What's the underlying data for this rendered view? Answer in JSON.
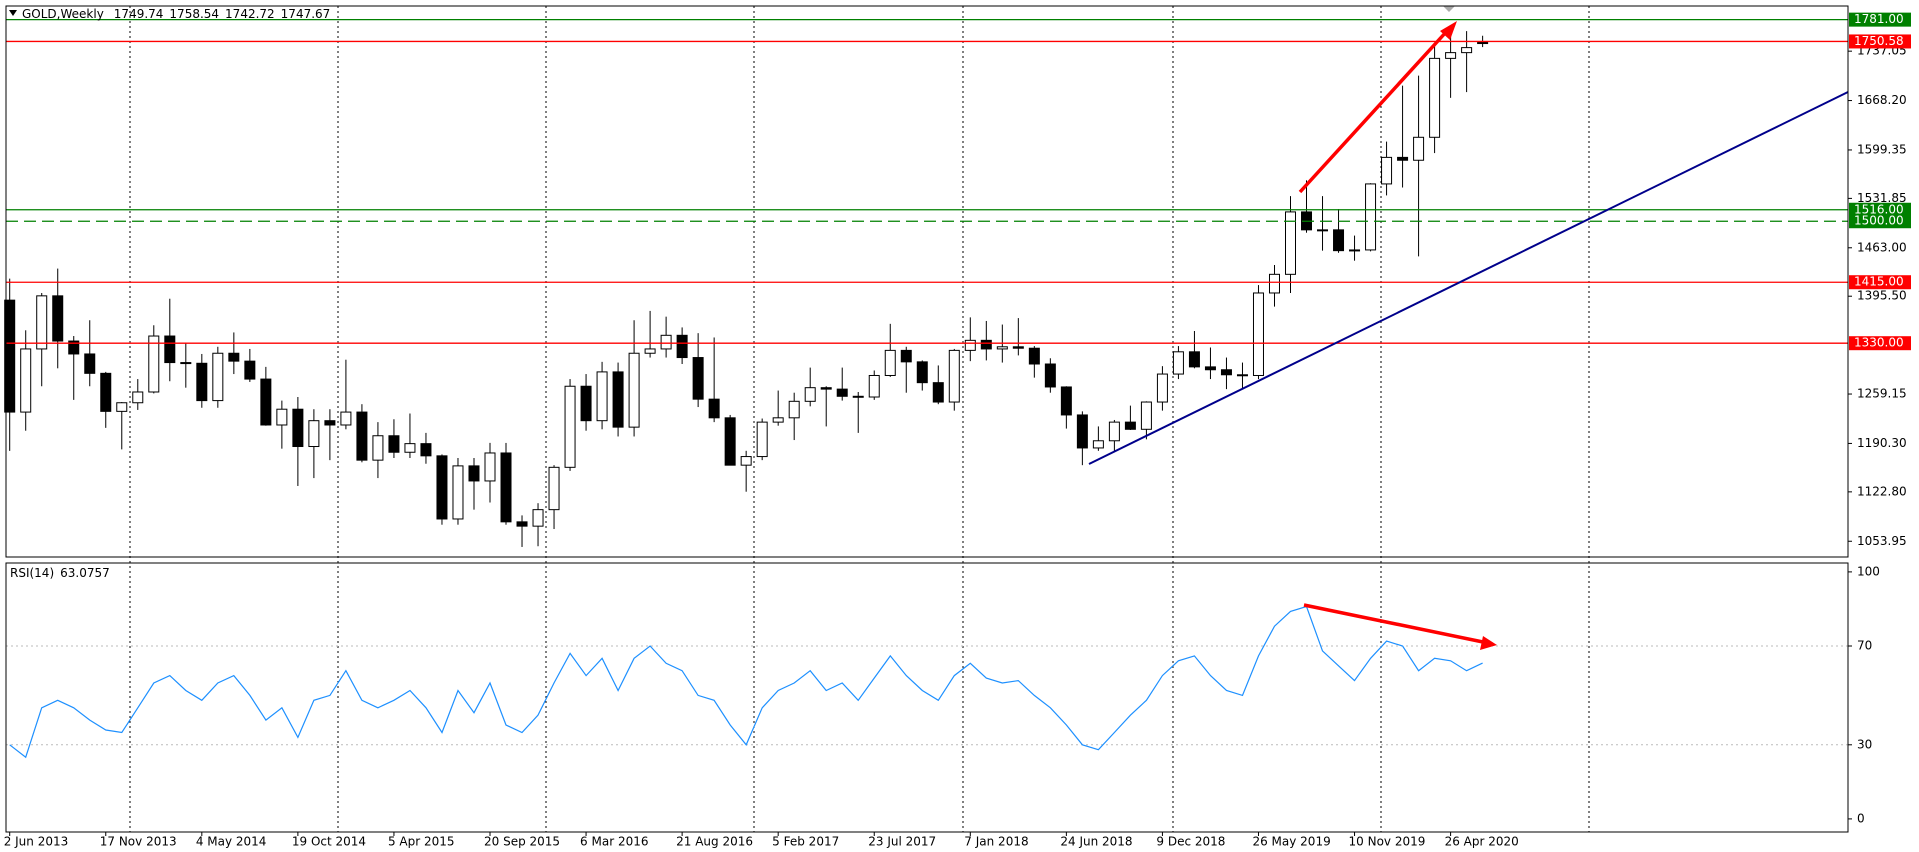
{
  "chart_data": {
    "type": "candlestick",
    "title": "GOLD,Weekly",
    "header_values": [
      1749.74,
      1758.54,
      1742.72,
      1747.67
    ],
    "categories": [
      "2 Jun 2013",
      null,
      null,
      null,
      null,
      null,
      "17 Nov 2013",
      null,
      null,
      null,
      null,
      null,
      "4 May 2014",
      null,
      null,
      null,
      null,
      null,
      "19 Oct 2014",
      null,
      null,
      null,
      null,
      null,
      "5 Apr 2015",
      null,
      null,
      null,
      null,
      null,
      "20 Sep 2015",
      null,
      null,
      null,
      null,
      null,
      "6 Mar 2016",
      null,
      null,
      null,
      null,
      null,
      "21 Aug 2016",
      null,
      null,
      null,
      null,
      null,
      "5 Feb 2017",
      null,
      null,
      null,
      null,
      null,
      "23 Jul 2017",
      null,
      null,
      null,
      null,
      null,
      "7 Jan 2018",
      null,
      null,
      null,
      null,
      null,
      "24 Jun 2018",
      null,
      null,
      null,
      null,
      null,
      "9 Dec 2018",
      null,
      null,
      null,
      null,
      null,
      "26 May 2019",
      null,
      null,
      null,
      null,
      null,
      "10 Nov 2019",
      null,
      null,
      null,
      null,
      null,
      "26 Apr 2020",
      null,
      null
    ],
    "open": [
      1390,
      1234,
      1322,
      1396,
      1333,
      1315,
      1288,
      1235,
      1247,
      1262,
      1340,
      1303,
      1302,
      1250,
      1316,
      1305,
      1280,
      1216,
      1238,
      1186,
      1222,
      1216,
      1234,
      1167,
      1201,
      1178,
      1190,
      1173,
      1085,
      1159,
      1138,
      1177,
      1081,
      1075,
      1098,
      1157,
      1270,
      1222,
      1290,
      1213,
      1316,
      1322,
      1341,
      1310,
      1252,
      1226,
      1160,
      1172,
      1220,
      1226,
      1249,
      1268,
      1266,
      1256,
      1255,
      1285,
      1320,
      1304,
      1275,
      1248,
      1320,
      1334,
      1322,
      1325,
      1323,
      1301,
      1269,
      1230,
      1184,
      1194,
      1220,
      1210,
      1248,
      1287,
      1318,
      1297,
      1293,
      1286,
      1285,
      1400,
      1426,
      1513,
      1488,
      1488,
      1459,
      1460,
      1552,
      1589,
      1585,
      1617,
      1727,
      1735,
      1749.74
    ],
    "high": [
      1420,
      1348,
      1400,
      1434,
      1340,
      1362,
      1290,
      1248,
      1280,
      1355,
      1392,
      1331,
      1315,
      1325,
      1345,
      1322,
      1297,
      1250,
      1255,
      1238,
      1238,
      1307,
      1245,
      1220,
      1224,
      1232,
      1205,
      1175,
      1170,
      1170,
      1191,
      1191,
      1090,
      1107,
      1160,
      1280,
      1287,
      1304,
      1303,
      1362,
      1375,
      1367,
      1352,
      1344,
      1338,
      1230,
      1180,
      1225,
      1264,
      1261,
      1296,
      1270,
      1296,
      1262,
      1292,
      1357,
      1325,
      1306,
      1299,
      1322,
      1366,
      1361,
      1356,
      1365,
      1326,
      1309,
      1270,
      1235,
      1214,
      1223,
      1243,
      1249,
      1298,
      1326,
      1347,
      1324,
      1310,
      1303,
      1411,
      1439,
      1535,
      1557,
      1535,
      1517,
      1480,
      1553,
      1611,
      1689,
      1703,
      1747,
      1765,
      1765,
      1758.54
    ],
    "low": [
      1180,
      1208,
      1270,
      1295,
      1251,
      1270,
      1212,
      1182,
      1237,
      1260,
      1277,
      1268,
      1240,
      1240,
      1287,
      1276,
      1215,
      1183,
      1131,
      1142,
      1167,
      1210,
      1164,
      1142,
      1170,
      1170,
      1162,
      1077,
      1077,
      1098,
      1108,
      1077,
      1046,
      1047,
      1071,
      1152,
      1208,
      1210,
      1200,
      1200,
      1310,
      1310,
      1301,
      1241,
      1220,
      1160,
      1123,
      1167,
      1215,
      1195,
      1242,
      1214,
      1250,
      1205,
      1251,
      1283,
      1261,
      1264,
      1245,
      1236,
      1305,
      1306,
      1303,
      1313,
      1282,
      1261,
      1211,
      1160,
      1180,
      1180,
      1209,
      1196,
      1236,
      1280,
      1295,
      1280,
      1266,
      1266,
      1280,
      1381,
      1400,
      1484,
      1459,
      1456,
      1445,
      1458,
      1536,
      1547,
      1451,
      1595,
      1672,
      1680,
      1742.72
    ],
    "close": [
      1234,
      1322,
      1396,
      1333,
      1315,
      1288,
      1235,
      1247,
      1262,
      1340,
      1303,
      1302,
      1250,
      1316,
      1305,
      1280,
      1216,
      1238,
      1186,
      1222,
      1216,
      1234,
      1167,
      1201,
      1178,
      1190,
      1173,
      1085,
      1159,
      1138,
      1177,
      1081,
      1075,
      1098,
      1157,
      1270,
      1222,
      1290,
      1213,
      1316,
      1322,
      1341,
      1310,
      1252,
      1226,
      1160,
      1172,
      1220,
      1226,
      1249,
      1268,
      1266,
      1256,
      1255,
      1285,
      1320,
      1304,
      1275,
      1248,
      1320,
      1334,
      1322,
      1325,
      1323,
      1301,
      1269,
      1230,
      1184,
      1194,
      1220,
      1210,
      1248,
      1287,
      1318,
      1297,
      1293,
      1286,
      1285,
      1400,
      1426,
      1513,
      1488,
      1488,
      1459,
      1460,
      1552,
      1589,
      1585,
      1617,
      1727,
      1735,
      1742,
      1747.67
    ],
    "up_color": "#ffffff",
    "down_color": "#000000",
    "ylim": [
      1032,
      1800
    ],
    "yticks": [
      1053.95,
      {
        "value": 1122.8,
        "label": "1122.80"
      },
      {
        "value": 1190.3,
        "label": "1190.30"
      },
      1259.15,
      {
        "value": 1395.5,
        "label": "1395.50"
      },
      {
        "value": 1463,
        "label": "1463.00"
      },
      1531.85,
      1599.35,
      {
        "value": 1668.2,
        "label": "1668.20"
      },
      1737.05
    ],
    "levels": [
      {
        "value": 1781,
        "label": "1781.00",
        "color": "#008000",
        "style": "solid"
      },
      {
        "value": 1750.58,
        "label": "1750.58",
        "color": "#ff0000",
        "style": "solid"
      },
      {
        "value": 1516,
        "label": "1516.00",
        "color": "#008000",
        "style": "solid"
      },
      {
        "value": 1500,
        "label": "1500.00",
        "color": "#008000",
        "style": "dashed"
      },
      {
        "value": 1415,
        "label": "1415.00",
        "color": "#ff0000",
        "style": "solid"
      },
      {
        "value": 1330,
        "label": "1330.00",
        "color": "#ff0000",
        "style": "solid"
      }
    ],
    "indicator": {
      "type": "line",
      "title": "RSI(14)",
      "current": 63.0757,
      "color": "#1e90ff",
      "values": [
        30,
        25,
        45,
        48,
        45,
        40,
        36,
        35,
        45,
        55,
        58,
        52,
        48,
        55,
        58,
        50,
        40,
        45,
        33,
        48,
        50,
        60,
        48,
        45,
        48,
        52,
        45,
        35,
        52,
        43,
        55,
        38,
        35,
        42,
        55,
        67,
        58,
        65,
        52,
        65,
        70,
        63,
        60,
        50,
        48,
        38,
        30,
        45,
        52,
        55,
        60,
        52,
        55,
        48,
        57,
        66,
        58,
        52,
        48,
        58,
        63,
        57,
        55,
        56,
        50,
        45,
        38,
        30,
        28,
        35,
        42,
        48,
        58,
        64,
        66,
        58,
        52,
        50,
        66,
        78,
        84,
        86,
        68,
        62,
        56,
        65,
        72,
        70,
        60,
        65,
        64,
        60,
        63.0757
      ],
      "ylim": [
        -5.3,
        103.6
      ],
      "yticks": [
        0,
        30,
        70,
        100
      ],
      "grid_values": [
        30,
        70
      ]
    }
  }
}
